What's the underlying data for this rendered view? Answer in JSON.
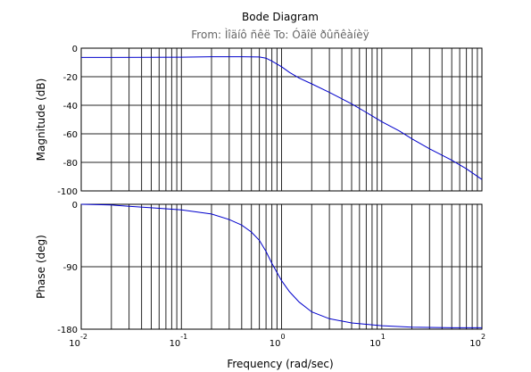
{
  "title": "Bode Diagram",
  "subtitle": "From: Ìîäíô ñêë  To: Óãîë ðûñêàíèÿ",
  "chart_data": [
    {
      "type": "line",
      "ylabel": "Magnitude (dB)",
      "x_scale": "log",
      "xlim": [
        0.01,
        100
      ],
      "ylim": [
        -100,
        0
      ],
      "yticks": [
        0,
        -20,
        -40,
        -60,
        -80,
        -100
      ],
      "grid": true,
      "series": [
        {
          "color": "#0000cc",
          "x": [
            0.01,
            0.02,
            0.05,
            0.1,
            0.2,
            0.4,
            0.6,
            0.7,
            0.8,
            1.0,
            1.2,
            1.5,
            2,
            3,
            5,
            7,
            10,
            15,
            20,
            30,
            50,
            70,
            100
          ],
          "y": [
            -6.5,
            -6.5,
            -6.4,
            -6.3,
            -6.0,
            -6.0,
            -6.2,
            -7.0,
            -9.0,
            -13.0,
            -17.0,
            -21.0,
            -25.0,
            -31.0,
            -39.0,
            -45.0,
            -51.5,
            -58.0,
            -63.5,
            -70.5,
            -78.5,
            -84.5,
            -92.0
          ]
        }
      ]
    },
    {
      "type": "line",
      "ylabel": "Phase (deg)",
      "xlabel": "Frequency  (rad/sec)",
      "x_scale": "log",
      "xlim": [
        0.01,
        100
      ],
      "ylim": [
        -180,
        0
      ],
      "yticks": [
        0,
        -90,
        -180
      ],
      "xticks": [
        {
          "base": "10",
          "exp": "-2"
        },
        {
          "base": "10",
          "exp": "-1"
        },
        {
          "base": "10",
          "exp": "0"
        },
        {
          "base": "10",
          "exp": "1"
        },
        {
          "base": "10",
          "exp": "2"
        }
      ],
      "grid": true,
      "series": [
        {
          "color": "#0000cc",
          "x": [
            0.01,
            0.02,
            0.03,
            0.05,
            0.1,
            0.2,
            0.3,
            0.4,
            0.5,
            0.6,
            0.7,
            0.8,
            1.0,
            1.2,
            1.5,
            2,
            3,
            5,
            10,
            20,
            50,
            100
          ],
          "y": [
            0,
            -1,
            -3,
            -5,
            -8,
            -14,
            -22,
            -30,
            -40,
            -52,
            -68,
            -85,
            -110,
            -126,
            -141,
            -155,
            -165,
            -171,
            -175,
            -177,
            -178,
            -178
          ]
        }
      ]
    }
  ]
}
